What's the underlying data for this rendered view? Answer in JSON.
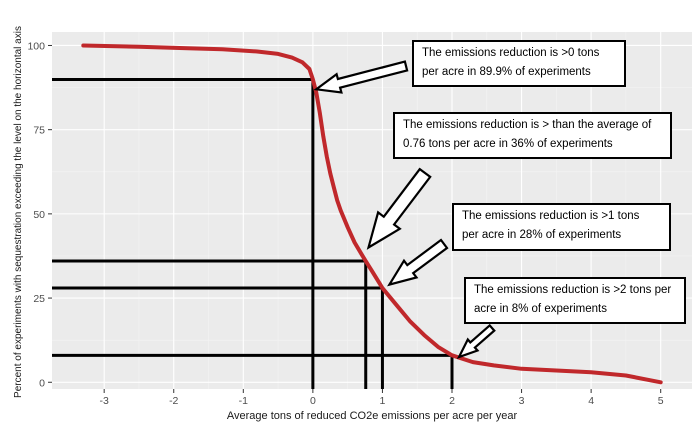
{
  "chart_data": {
    "type": "line",
    "xlabel": "Average tons of reduced CO2e emissions per acre per year",
    "ylabel": "Percent of experiments with sequestration exceeding the level on the horizontal axis",
    "xlim": [
      -3.75,
      5.45
    ],
    "ylim": [
      -2,
      104
    ],
    "x_ticks": [
      "-3",
      "-2",
      "-1",
      "0",
      "1",
      "2",
      "3",
      "4",
      "5"
    ],
    "y_ticks": [
      "0",
      "25",
      "50",
      "75",
      "100"
    ],
    "grid": true,
    "background": "#ebebeb",
    "series": [
      {
        "color": "#c0282b",
        "x": [
          -3.3,
          -2.5,
          -1.8,
          -1.3,
          -0.8,
          -0.5,
          -0.3,
          -0.15,
          -0.05,
          0,
          0.05,
          0.1,
          0.15,
          0.2,
          0.25,
          0.3,
          0.35,
          0.4,
          0.5,
          0.6,
          0.7,
          0.76,
          0.85,
          1.0,
          1.2,
          1.4,
          1.6,
          1.8,
          2.0,
          2.3,
          2.6,
          3.0,
          3.5,
          4.0,
          4.5,
          5.0
        ],
        "y": [
          100,
          99.6,
          99.2,
          98.9,
          98.2,
          97.5,
          96.4,
          95,
          93,
          89.9,
          86,
          80,
          73,
          67,
          62,
          58,
          54,
          51,
          46,
          41.5,
          38,
          36,
          33,
          28,
          23,
          18,
          14,
          10.5,
          8,
          6,
          5,
          4,
          3.5,
          3,
          2,
          0
        ]
      }
    ],
    "reference_lines": [
      {
        "x": 0,
        "y": 89.9
      },
      {
        "x": 0.76,
        "y": 36
      },
      {
        "x": 1,
        "y": 28
      },
      {
        "x": 2,
        "y": 8
      }
    ],
    "annotations": [
      {
        "lines": [
          "The emissions reduction is >0 tons",
          "per acre in 89.9% of experiments"
        ],
        "arrow_to": {
          "x": 0.05,
          "y": 87
        }
      },
      {
        "lines": [
          "The emissions reduction is > than the average of",
          "0.76 tons per acre in 36% of experiments"
        ],
        "arrow_to": {
          "x": 0.8,
          "y": 40
        }
      },
      {
        "lines": [
          "The emissions reduction is >1 tons",
          "per acre in 28% of experiments"
        ],
        "arrow_to": {
          "x": 1.1,
          "y": 29
        }
      },
      {
        "lines": [
          "The emissions reduction is >2 tons per",
          "acre in 8% of experiments"
        ],
        "arrow_to": {
          "x": 2.1,
          "y": 7.5
        }
      }
    ]
  }
}
